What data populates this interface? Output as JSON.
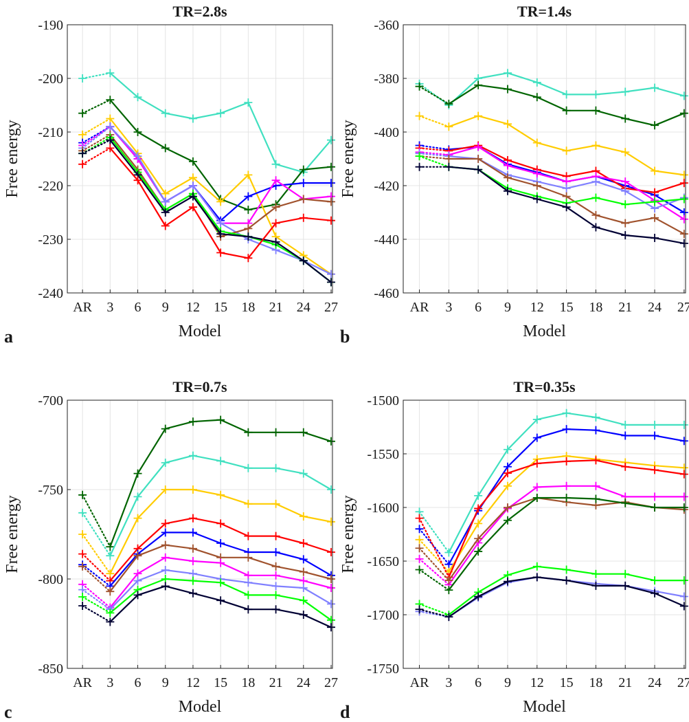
{
  "chart_data": [
    {
      "type": "line",
      "panel_label": "a",
      "title": "TR=2.8s",
      "xlabel": "Model",
      "ylabel": "Free energy",
      "categories": [
        "AR",
        "3",
        "6",
        "9",
        "12",
        "15",
        "18",
        "21",
        "24",
        "27"
      ],
      "yticks": [
        "-190",
        "-200",
        "-210",
        "-220",
        "-230",
        "-240"
      ],
      "ylim": [
        -240,
        -190
      ],
      "grid": true,
      "first_segment_style": "dotted",
      "series": [
        {
          "color": "#40e0c0",
          "values": [
            -200,
            -199,
            -203.5,
            -206.5,
            -207.5,
            -206.5,
            -204.5,
            -216,
            -217.5,
            -211.5
          ]
        },
        {
          "color": "#006400",
          "values": [
            -206.5,
            -204,
            -210,
            -213,
            -215.5,
            -222.5,
            -224.5,
            -223.5,
            -217,
            -216.5
          ]
        },
        {
          "color": "#ffcc00",
          "values": [
            -210.5,
            -207.5,
            -214,
            -221.5,
            -218.5,
            -223,
            -218,
            -229.5,
            -233,
            -236.5
          ]
        },
        {
          "color": "#0000ff",
          "values": [
            -212,
            -209,
            -215,
            -223,
            -220,
            -226.5,
            -222,
            -220,
            -219.5,
            -219.5
          ]
        },
        {
          "color": "#ff00ff",
          "values": [
            -212.5,
            -209,
            -215,
            -223,
            -220,
            -227,
            -227,
            -219,
            -222.5,
            -222
          ]
        },
        {
          "color": "#8080ff",
          "values": [
            -213,
            -209,
            -214.5,
            -223,
            -220,
            -227,
            -230,
            -232,
            -234,
            -236.5
          ]
        },
        {
          "color": "#a0522d",
          "values": [
            -213.5,
            -210.5,
            -217,
            -224.5,
            -221.5,
            -229.5,
            -228,
            -224,
            -222.5,
            -223
          ]
        },
        {
          "color": "#00ff00",
          "values": [
            -214,
            -211,
            -217.5,
            -224.5,
            -221.5,
            -228.5,
            -229.5,
            -231,
            -234,
            -238
          ]
        },
        {
          "color": "#000033",
          "values": [
            -214,
            -211.5,
            -218,
            -225,
            -222,
            -229,
            -229.5,
            -230.5,
            -234,
            -238
          ]
        },
        {
          "color": "#ff0000",
          "values": [
            -216,
            -213,
            -219,
            -227.5,
            -224,
            -232.5,
            -233.5,
            -227,
            -226,
            -226.5
          ]
        }
      ]
    },
    {
      "type": "line",
      "panel_label": "b",
      "title": "TR=1.4s",
      "xlabel": "Model",
      "ylabel": "Free energy",
      "categories": [
        "AR",
        "3",
        "6",
        "9",
        "12",
        "15",
        "18",
        "21",
        "24",
        "27"
      ],
      "yticks": [
        "-360",
        "-380",
        "-400",
        "-420",
        "-440",
        "-460"
      ],
      "ylim": [
        -460,
        -360
      ],
      "grid": true,
      "first_segment_style": "dotted",
      "series": [
        {
          "color": "#40e0c0",
          "values": [
            -382,
            -390,
            -380,
            -378,
            -381.5,
            -386,
            -386,
            -385,
            -383.5,
            -386.5
          ]
        },
        {
          "color": "#006400",
          "values": [
            -383,
            -389.5,
            -382.5,
            -384,
            -387,
            -392,
            -392,
            -395,
            -397.5,
            -393
          ]
        },
        {
          "color": "#ffcc00",
          "values": [
            -394,
            -398,
            -394,
            -397,
            -404,
            -407,
            -405,
            -407.5,
            -414.5,
            -416
          ]
        },
        {
          "color": "#0000ff",
          "values": [
            -405,
            -406.5,
            -405.5,
            -412,
            -415,
            -418.5,
            -416.5,
            -420,
            -423.5,
            -430
          ]
        },
        {
          "color": "#ff0000",
          "values": [
            -406,
            -407,
            -405,
            -410.5,
            -414,
            -416.5,
            -414.5,
            -421,
            -422.5,
            -419
          ]
        },
        {
          "color": "#ff00ff",
          "values": [
            -407.5,
            -408.5,
            -405.5,
            -412.5,
            -415.5,
            -418.5,
            -416.5,
            -418.5,
            -425.5,
            -432.5
          ]
        },
        {
          "color": "#8080ff",
          "values": [
            -408,
            -409,
            -410,
            -416,
            -418.5,
            -421,
            -418.5,
            -422,
            -428.5,
            -424.5
          ]
        },
        {
          "color": "#a0522d",
          "values": [
            -409,
            -410,
            -410,
            -417,
            -420,
            -424,
            -431,
            -434,
            -432,
            -438
          ]
        },
        {
          "color": "#00ff00",
          "values": [
            -409,
            -413,
            -414,
            -421,
            -424,
            -426.5,
            -424.5,
            -427,
            -426,
            -425
          ]
        },
        {
          "color": "#000033",
          "values": [
            -413,
            -413,
            -414,
            -422,
            -425,
            -428,
            -435.5,
            -438.5,
            -439.5,
            -441.5
          ]
        }
      ]
    },
    {
      "type": "line",
      "panel_label": "c",
      "title": "TR=0.7s",
      "xlabel": "Model",
      "ylabel": "Free energy",
      "categories": [
        "AR",
        "3",
        "6",
        "9",
        "12",
        "15",
        "18",
        "21",
        "24",
        "27"
      ],
      "yticks": [
        "-700",
        "-750",
        "-800",
        "-850"
      ],
      "ylim": [
        -850,
        -700
      ],
      "grid": true,
      "first_segment_style": "dotted",
      "series": [
        {
          "color": "#006400",
          "values": [
            -753,
            -782,
            -741,
            -716,
            -712,
            -711,
            -718,
            -718,
            -718,
            -723
          ]
        },
        {
          "color": "#40e0c0",
          "values": [
            -763,
            -787,
            -754,
            -735,
            -731,
            -734,
            -738,
            -738,
            -741,
            -750
          ]
        },
        {
          "color": "#ffcc00",
          "values": [
            -775,
            -797,
            -766,
            -750,
            -750,
            -753,
            -758,
            -758,
            -765,
            -768
          ]
        },
        {
          "color": "#ff0000",
          "values": [
            -786,
            -801,
            -783,
            -769,
            -766,
            -769,
            -776,
            -776,
            -780,
            -785
          ]
        },
        {
          "color": "#0000ff",
          "values": [
            -792,
            -804,
            -786,
            -774,
            -774,
            -780,
            -785,
            -785,
            -789,
            -798
          ]
        },
        {
          "color": "#a0522d",
          "values": [
            -793,
            -807,
            -787,
            -781,
            -783,
            -788,
            -788,
            -793,
            -796,
            -800
          ]
        },
        {
          "color": "#ff00ff",
          "values": [
            -803,
            -816,
            -797,
            -788,
            -790,
            -791,
            -798,
            -798,
            -801,
            -805
          ]
        },
        {
          "color": "#8080ff",
          "values": [
            -806,
            -817,
            -801,
            -795,
            -797,
            -800,
            -802,
            -804,
            -805,
            -814
          ]
        },
        {
          "color": "#00ff00",
          "values": [
            -810,
            -819,
            -806,
            -800,
            -801,
            -802,
            -809,
            -809,
            -812,
            -823
          ]
        },
        {
          "color": "#000033",
          "values": [
            -815,
            -824,
            -809,
            -804,
            -808,
            -812,
            -817,
            -817,
            -820,
            -827
          ]
        }
      ]
    },
    {
      "type": "line",
      "panel_label": "d",
      "title": "TR=0.35s",
      "xlabel": "Model",
      "ylabel": "Free energy",
      "categories": [
        "AR",
        "3",
        "6",
        "9",
        "12",
        "15",
        "18",
        "21",
        "24",
        "27"
      ],
      "yticks": [
        "-1500",
        "-1550",
        "-1600",
        "-1650",
        "-1700",
        "-1750"
      ],
      "ylim": [
        -1750,
        -1500
      ],
      "grid": true,
      "first_segment_style": "dotted",
      "series": [
        {
          "color": "#40e0c0",
          "values": [
            -1604,
            -1642,
            -1589,
            -1546,
            -1518,
            -1512,
            -1516,
            -1523,
            -1523,
            -1523
          ]
        },
        {
          "color": "#0000ff",
          "values": [
            -1620,
            -1653,
            -1603,
            -1562,
            -1535,
            -1527,
            -1528,
            -1533,
            -1533,
            -1538
          ]
        },
        {
          "color": "#ffcc00",
          "values": [
            -1630,
            -1660,
            -1615,
            -1580,
            -1555,
            -1552,
            -1555,
            -1558,
            -1561,
            -1563
          ]
        },
        {
          "color": "#ff0000",
          "values": [
            -1610,
            -1665,
            -1601,
            -1568,
            -1559,
            -1557,
            -1556,
            -1562,
            -1565,
            -1569
          ]
        },
        {
          "color": "#ff00ff",
          "values": [
            -1648,
            -1672,
            -1633,
            -1601,
            -1581,
            -1580,
            -1580,
            -1590,
            -1590,
            -1590
          ]
        },
        {
          "color": "#a0522d",
          "values": [
            -1638,
            -1668,
            -1629,
            -1600,
            -1591,
            -1595,
            -1598,
            -1595,
            -1600,
            -1602
          ]
        },
        {
          "color": "#006400",
          "values": [
            -1658,
            -1677,
            -1641,
            -1612,
            -1591,
            -1591,
            -1592,
            -1596,
            -1600,
            -1600
          ]
        },
        {
          "color": "#00ff00",
          "values": [
            -1690,
            -1700,
            -1679,
            -1663,
            -1655,
            -1658,
            -1662,
            -1662,
            -1668,
            -1668
          ]
        },
        {
          "color": "#8080ff",
          "values": [
            -1697,
            -1702,
            -1684,
            -1670,
            -1665,
            -1668,
            -1671,
            -1673,
            -1678,
            -1683
          ]
        },
        {
          "color": "#000033",
          "values": [
            -1695,
            -1702,
            -1683,
            -1669,
            -1665,
            -1668,
            -1673,
            -1673,
            -1680,
            -1692
          ]
        }
      ]
    }
  ]
}
